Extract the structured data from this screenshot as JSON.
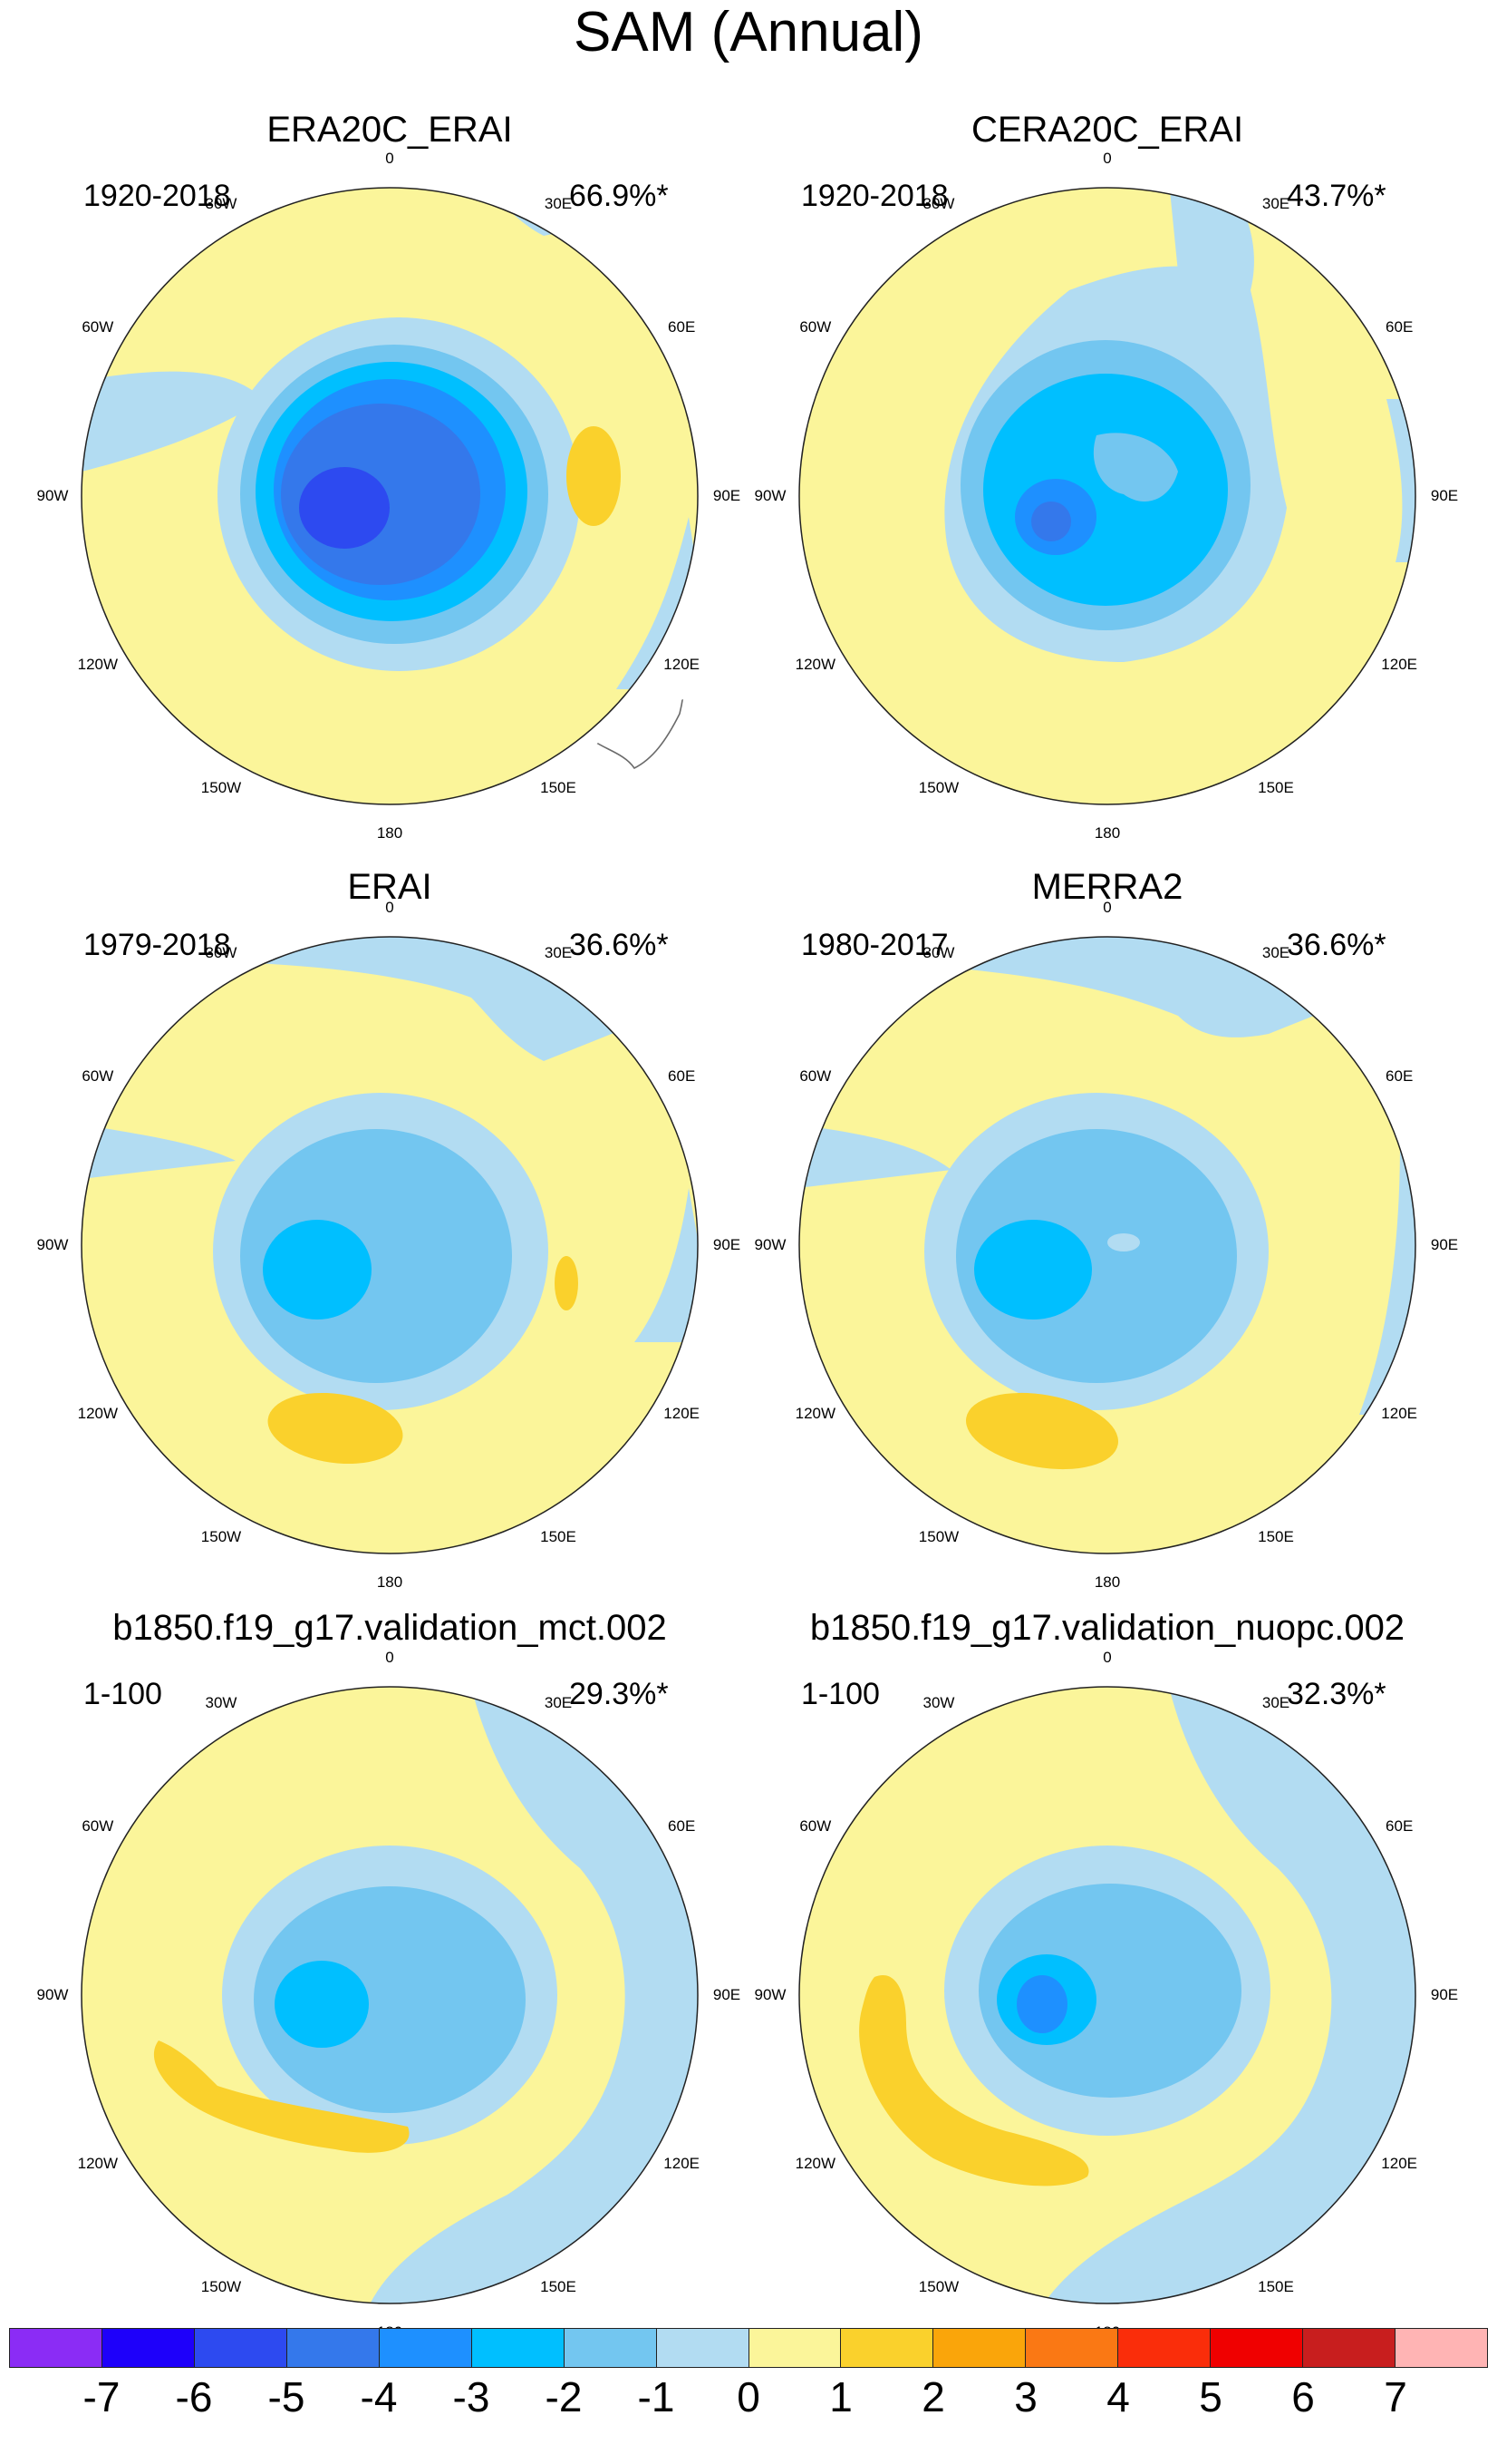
{
  "title": "SAM (Annual)",
  "longitude_labels": [
    "0",
    "30E",
    "60E",
    "90E",
    "120E",
    "150E",
    "180",
    "150W",
    "120W",
    "90W",
    "60W",
    "30W"
  ],
  "panels": [
    {
      "title": "ERA20C_ERAI",
      "years": "1920-2018",
      "percent": "66.9%*"
    },
    {
      "title": "CERA20C_ERAI",
      "years": "1920-2018",
      "percent": "43.7%*"
    },
    {
      "title": "ERAI",
      "years": "1979-2018",
      "percent": "36.6%*"
    },
    {
      "title": "MERRA2",
      "years": "1980-2017",
      "percent": "36.6%*"
    },
    {
      "title": "b1850.f19_g17.validation_mct.002",
      "years": "1-100",
      "percent": "29.3%*"
    },
    {
      "title": "b1850.f19_g17.validation_nuopc.002",
      "years": "1-100",
      "percent": "32.3%*"
    }
  ],
  "colorbar": {
    "colors": [
      "#8b2cf5",
      "#1e00fa",
      "#2d4af0",
      "#3478eb",
      "#1e90ff",
      "#00bfff",
      "#73c6f0",
      "#b2dcf2",
      "#fbf59a",
      "#fad12c",
      "#faa50a",
      "#fa7814",
      "#fa2d0a",
      "#f00000",
      "#c81e1e",
      "#ffb4b4"
    ],
    "labels": [
      "-7",
      "-6",
      "-5",
      "-4",
      "-3",
      "-2",
      "-1",
      "0",
      "1",
      "2",
      "3",
      "4",
      "5",
      "6",
      "7"
    ]
  }
}
